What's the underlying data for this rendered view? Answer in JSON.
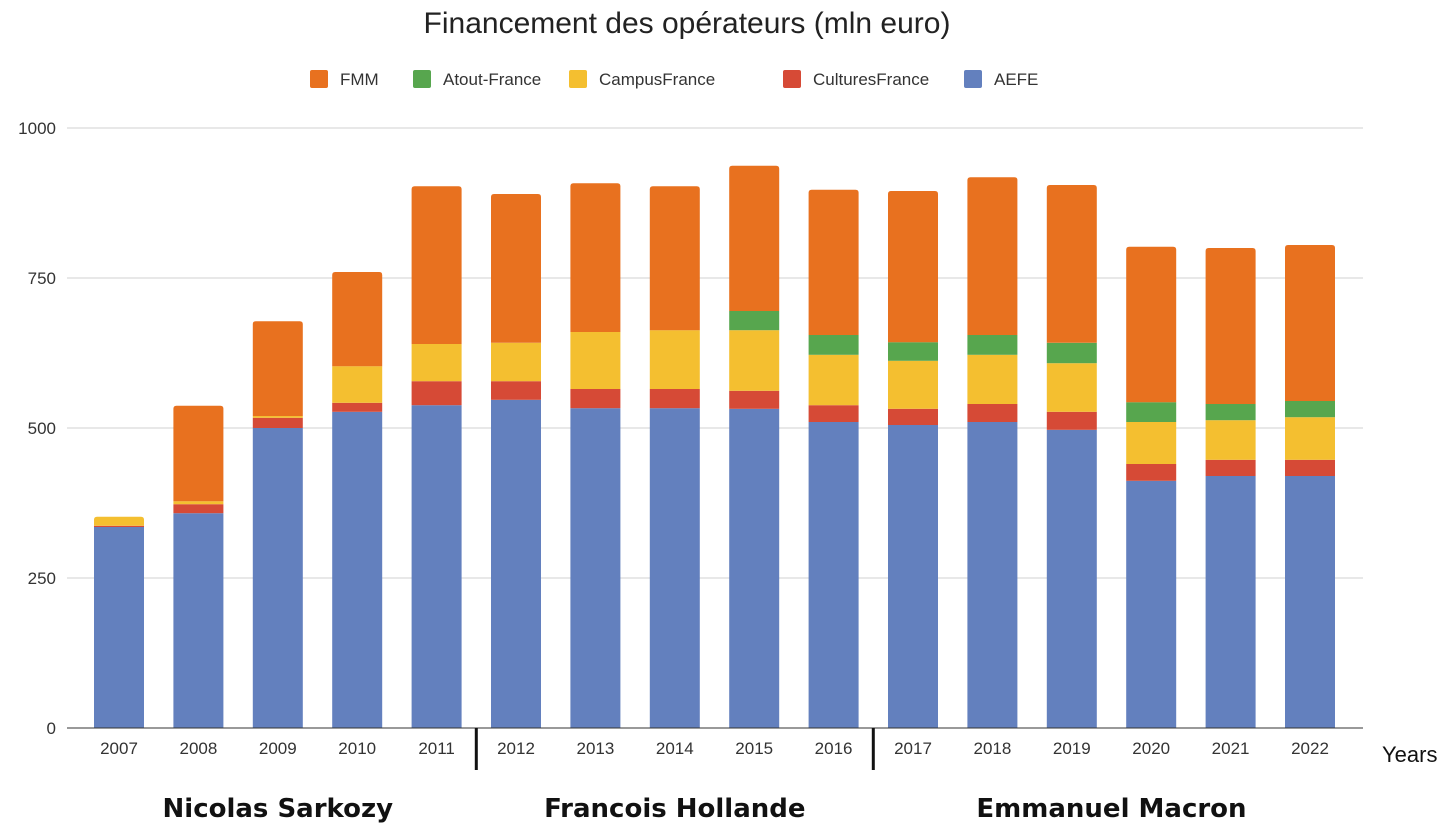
{
  "chart_data": {
    "type": "bar",
    "stacked": true,
    "title": "Financement des opérateurs (mln euro)",
    "xlabel": "Years",
    "ylabel": "",
    "ylim": [
      0,
      1000
    ],
    "yticks": [
      0,
      250,
      500,
      750,
      1000
    ],
    "ytick_labels": [
      "0",
      "250",
      "500",
      "750",
      "1000"
    ],
    "grid": true,
    "legend_position": "top",
    "categories": [
      "2007",
      "2008",
      "2009",
      "2010",
      "2011",
      "2012",
      "2013",
      "2014",
      "2015",
      "2016",
      "2017",
      "2018",
      "2019",
      "2020",
      "2021",
      "2022"
    ],
    "series": [
      {
        "name": "AEFE",
        "color": "#6380BE",
        "values": [
          335,
          358,
          500,
          527,
          538,
          547,
          533,
          533,
          532,
          510,
          505,
          510,
          497,
          412,
          420,
          420
        ]
      },
      {
        "name": "CulturesFrance",
        "color": "#D64A36",
        "values": [
          2,
          15,
          17,
          15,
          40,
          31,
          32,
          32,
          30,
          28,
          27,
          30,
          30,
          28,
          27,
          27
        ]
      },
      {
        "name": "CampusFrance",
        "color": "#F4BF30",
        "values": [
          15,
          5,
          3,
          61,
          62,
          64,
          95,
          98,
          101,
          84,
          80,
          82,
          81,
          70,
          66,
          71
        ]
      },
      {
        "name": "Atout-France",
        "color": "#57A64E",
        "values": [
          0,
          0,
          0,
          0,
          0,
          0,
          0,
          0,
          32,
          33,
          31,
          33,
          34,
          33,
          27,
          27
        ]
      },
      {
        "name": "FMM",
        "color": "#E8711F",
        "values": [
          0,
          159,
          158,
          157,
          263,
          248,
          248,
          240,
          242,
          242,
          252,
          263,
          263,
          259,
          260,
          260
        ]
      }
    ],
    "legend_order": [
      "FMM",
      "Atout-France",
      "CampusFrance",
      "CulturesFrance",
      "AEFE"
    ],
    "annotations": {
      "presidents": [
        {
          "name": "Nicolas Sarkozy",
          "from": "2007",
          "to": "2011"
        },
        {
          "name": "Francois Hollande",
          "from": "2012",
          "to": "2016"
        },
        {
          "name": "Emmanuel Macron",
          "from": "2017",
          "to": "2022"
        }
      ],
      "dividers_after": [
        "2011",
        "2016"
      ]
    }
  }
}
